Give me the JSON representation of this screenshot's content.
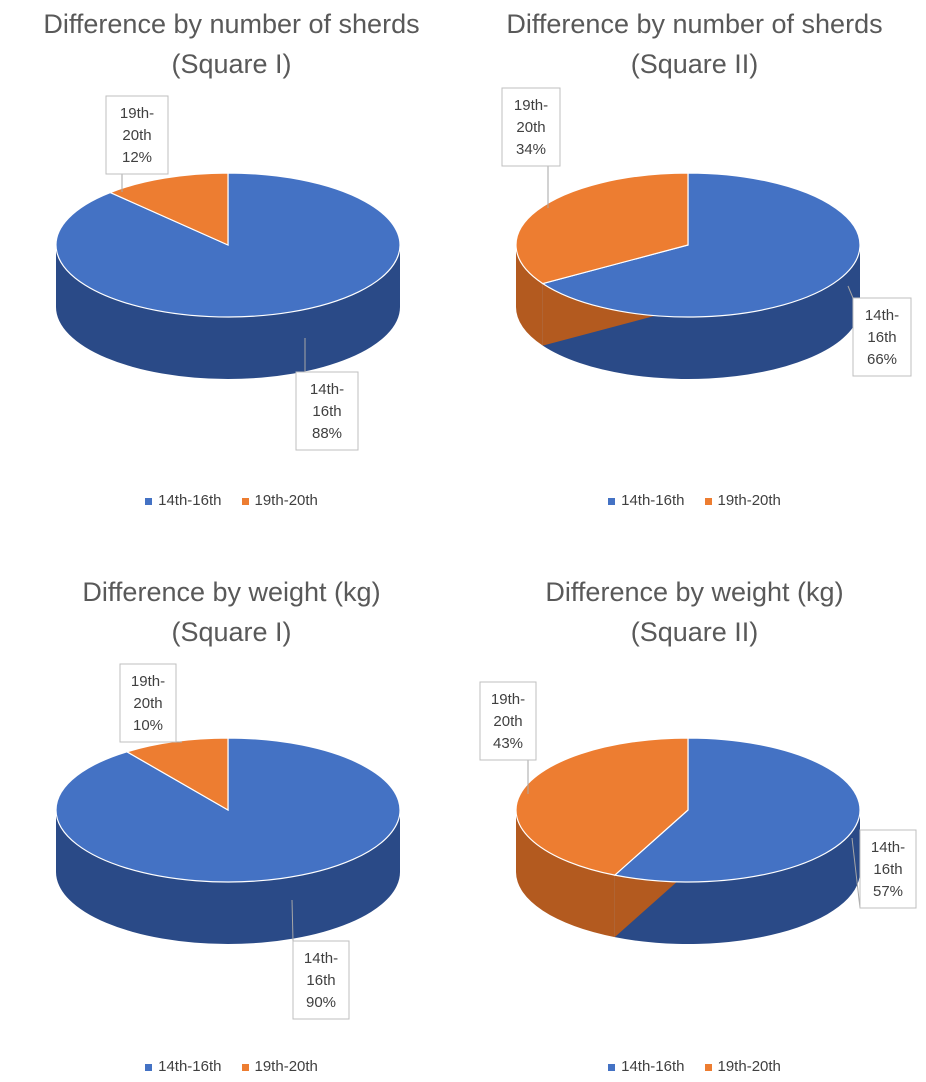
{
  "chart_data": [
    {
      "type": "pie",
      "title": "Difference by number of sherds (Square I)",
      "categories": [
        "14th-16th",
        "19th-20th"
      ],
      "values": [
        88,
        12
      ],
      "labels": [
        [
          "14th-",
          "16th",
          "88%"
        ],
        [
          "19th-",
          "20th",
          "12%"
        ]
      ],
      "legend": [
        "14th-16th",
        "19th-20th"
      ],
      "legend_position": "bottom",
      "style": "3D"
    },
    {
      "type": "pie",
      "title": "Difference by number of sherds (Square II)",
      "categories": [
        "14th-16th",
        "19th-20th"
      ],
      "values": [
        66,
        34
      ],
      "labels": [
        [
          "14th-",
          "16th",
          "66%"
        ],
        [
          "19th-",
          "20th",
          "34%"
        ]
      ],
      "legend": [
        "14th-16th",
        "19th-20th"
      ],
      "legend_position": "bottom",
      "style": "3D"
    },
    {
      "type": "pie",
      "title": "Difference by weight (kg) (Square I)",
      "categories": [
        "14th-16th",
        "19th-20th"
      ],
      "values": [
        90,
        10
      ],
      "labels": [
        [
          "14th-",
          "16th",
          "90%"
        ],
        [
          "19th-",
          "20th",
          "10%"
        ]
      ],
      "legend": [
        "14th-16th",
        "19th-20th"
      ],
      "legend_position": "bottom",
      "style": "3D"
    },
    {
      "type": "pie",
      "title": "Difference by weight (kg) (Square II)",
      "categories": [
        "14th-16th",
        "19th-20th"
      ],
      "values": [
        57,
        43
      ],
      "labels": [
        [
          "14th-",
          "16th",
          "57%"
        ],
        [
          "19th-",
          "20th",
          "43%"
        ]
      ],
      "legend": [
        "14th-16th",
        "19th-20th"
      ],
      "legend_position": "bottom",
      "style": "3D"
    }
  ],
  "colors": {
    "series": [
      "#4472c4",
      "#ed7d31"
    ],
    "series_dark": [
      "#2a4a87",
      "#b35a1f"
    ],
    "title": "#595959",
    "text": "#404040"
  }
}
